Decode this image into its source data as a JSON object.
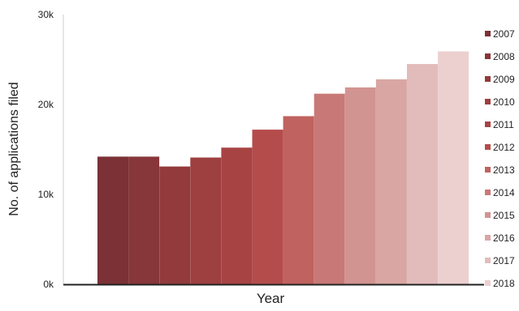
{
  "chart_data": {
    "type": "bar",
    "xlabel": "Year",
    "ylabel": "No. of applications filed",
    "ylim": [
      0,
      30000
    ],
    "yticks": [
      {
        "value": 0,
        "label": "0k"
      },
      {
        "value": 10000,
        "label": "10k"
      },
      {
        "value": 20000,
        "label": "20k"
      },
      {
        "value": 30000,
        "label": "30k"
      }
    ],
    "grid": false,
    "legend_position": "right",
    "categories": [
      "2007",
      "2008",
      "2009",
      "2010",
      "2011",
      "2012",
      "2013",
      "2014",
      "2015",
      "2016",
      "2017",
      "2018"
    ],
    "values": [
      14200,
      14200,
      13100,
      14100,
      15200,
      17200,
      18700,
      21200,
      21900,
      22800,
      24500,
      25900
    ],
    "colors": [
      "#7b3136",
      "#873639",
      "#923a3c",
      "#9e3f40",
      "#a84344",
      "#b54c4c",
      "#c0625f",
      "#c87977",
      "#d29491",
      "#d9a6a4",
      "#e2bcbb",
      "#eccfcf"
    ]
  }
}
